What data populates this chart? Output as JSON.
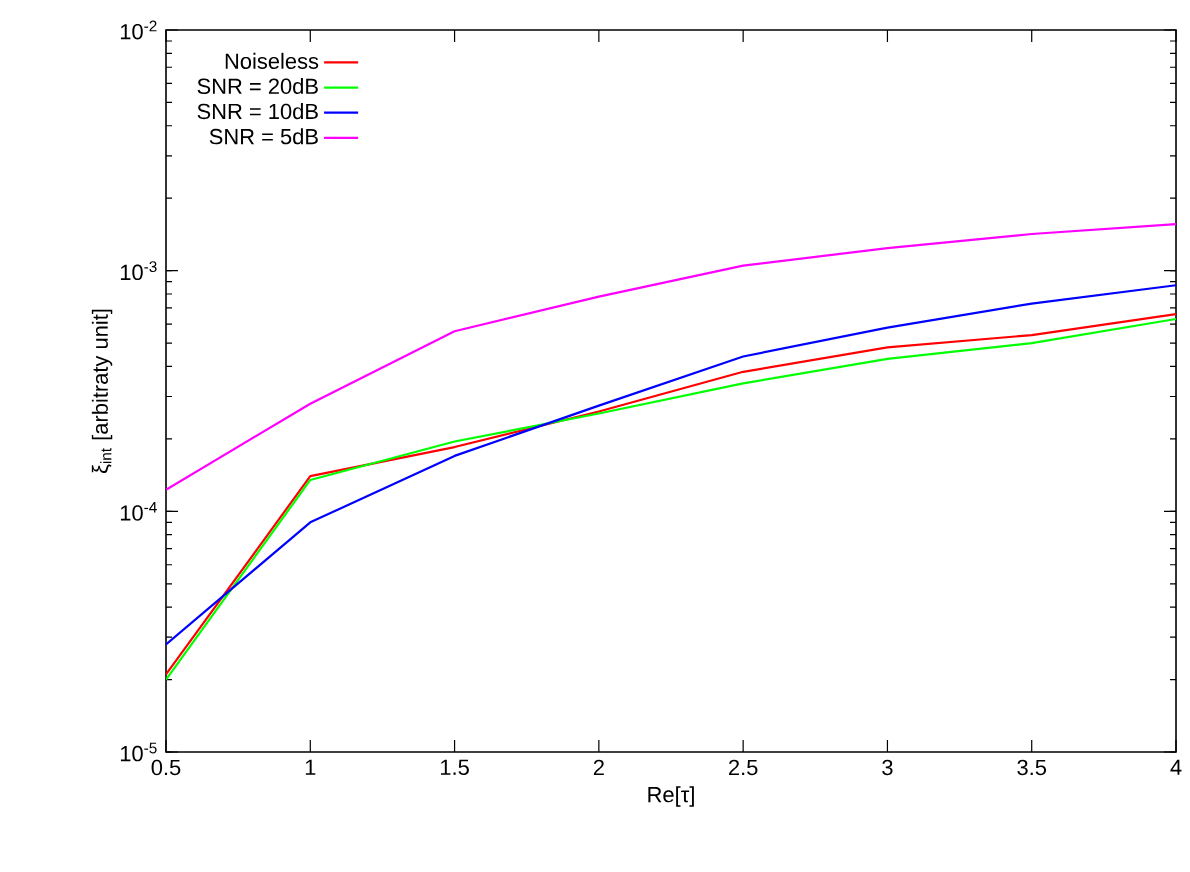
{
  "chart_data": {
    "type": "line",
    "xlabel": "Re[τ]",
    "ylabel": "ξ$_{int}$ [arbitraty unit]",
    "x": [
      0.5,
      1,
      1.5,
      2,
      2.5,
      3,
      3.5,
      4
    ],
    "series": [
      {
        "name": "Noiseless",
        "color": "#ff0000",
        "values": [
          2.1e-05,
          0.00014,
          0.000185,
          0.00026,
          0.00038,
          0.00048,
          0.00054,
          0.00066
        ]
      },
      {
        "name": "SNR = 20dB",
        "color": "#00ff00",
        "values": [
          2e-05,
          0.000135,
          0.000195,
          0.000255,
          0.00034,
          0.00043,
          0.0005,
          0.00063
        ]
      },
      {
        "name": "SNR = 10dB",
        "color": "#0000ff",
        "values": [
          2.8e-05,
          9e-05,
          0.00017,
          0.000275,
          0.00044,
          0.00058,
          0.00073,
          0.00087
        ]
      },
      {
        "name": "SNR = 5dB",
        "color": "#ff00ff",
        "values": [
          0.000123,
          0.00028,
          0.00056,
          0.00078,
          0.00105,
          0.00124,
          0.00142,
          0.00156
        ]
      }
    ],
    "log": "y",
    "xlim": [
      0.5,
      4
    ],
    "ylim": [
      1e-05,
      0.01
    ],
    "xticks": [
      0.5,
      1,
      1.5,
      2,
      2.5,
      3,
      3.5,
      4
    ],
    "yticks": [
      {
        "value": 1e-05,
        "label": "10$^{-5}$"
      },
      {
        "value": 0.0001,
        "label": "10$^{-4}$"
      },
      {
        "value": 0.001,
        "label": "10$^{-3}$"
      },
      {
        "value": 0.01,
        "label": "10$^{-2}$"
      }
    ],
    "legend": "top left",
    "grid": false,
    "marker": "none",
    "line_style": "solid"
  }
}
